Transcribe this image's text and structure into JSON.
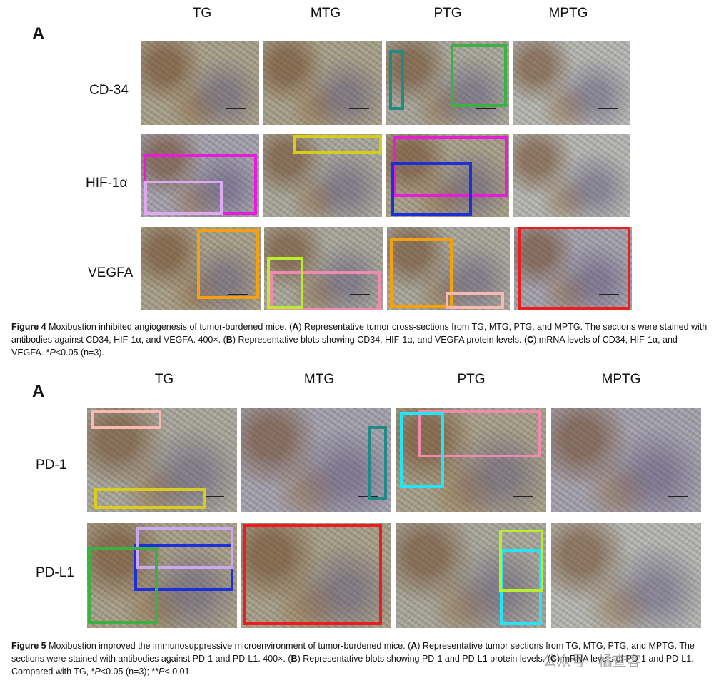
{
  "figure4": {
    "panel_letter": "A",
    "columns": [
      "TG",
      "MTG",
      "PTG",
      "MPTG"
    ],
    "rows": [
      "CD-34",
      "HIF-1α",
      "VEGFA"
    ],
    "caption": {
      "label": "Figure 4",
      "text_parts": [
        {
          "t": " Moxibustion inhibited angiogenesis of tumor-burdened mice. (",
          "b": false
        },
        {
          "t": "A",
          "b": true
        },
        {
          "t": ") Representative tumor cross-sections from TG, MTG, PTG, and MPTG. The sections were stained with antibodies against CD34, HIF-1α, and VEGFA. 400×. (",
          "b": false
        },
        {
          "t": "B",
          "b": true
        },
        {
          "t": ") Representative blots showing CD34, HIF-1α, and VEGFA protein levels. (",
          "b": false
        },
        {
          "t": "C",
          "b": true
        },
        {
          "t": ") mRNA levels of CD34, HIF-1α, and VEGFA. *",
          "b": false
        },
        {
          "t": "P",
          "i": true
        },
        {
          "t": "<0.05 (n=3).",
          "b": false
        }
      ]
    }
  },
  "figure5": {
    "panel_letter": "A",
    "columns": [
      "TG",
      "MTG",
      "PTG",
      "MPTG"
    ],
    "rows": [
      "PD-1",
      "PD-L1"
    ],
    "caption": {
      "label": "Figure 5",
      "text_parts": [
        {
          "t": " Moxibustion improved the immunosuppressive microenvironment of tumor-burdened mice. (",
          "b": false
        },
        {
          "t": "A",
          "b": true
        },
        {
          "t": ") Representative tumor sections from TG, MTG, PTG, and MPTG. The sections were stained with antibodies against PD-1 and PD-L1. 400×. (",
          "b": false
        },
        {
          "t": "B",
          "b": true
        },
        {
          "t": ") Representative blots showing PD-1 and PD-L1 protein levels. (",
          "b": false
        },
        {
          "t": "C",
          "b": true
        },
        {
          "t": ") mRNA levels of PD-1 and PD-L1. Compared with TG, *",
          "b": false
        },
        {
          "t": "P",
          "i": true
        },
        {
          "t": "<0.05 (n=3); **",
          "b": false
        },
        {
          "t": "P",
          "i": true
        },
        {
          "t": "< 0.01.",
          "b": false
        }
      ]
    }
  },
  "watermark": "公众号 · 橘查客",
  "box_colors": {
    "teal": "#1f8a86",
    "green": "#3cb043",
    "magenta": "#e81bd8",
    "lavender": "#e0a8f0",
    "yellow": "#d8cc1a",
    "blue": "#1c2fd8",
    "orange": "#f5a00f",
    "lime": "#b8ee2a",
    "pink": "#f08ab0",
    "salmon": "#f7b9b0",
    "red": "#ee1c1c",
    "cyan": "#22e6f5",
    "olive": "#d9cc1b",
    "violet": "#c8a8f0"
  }
}
